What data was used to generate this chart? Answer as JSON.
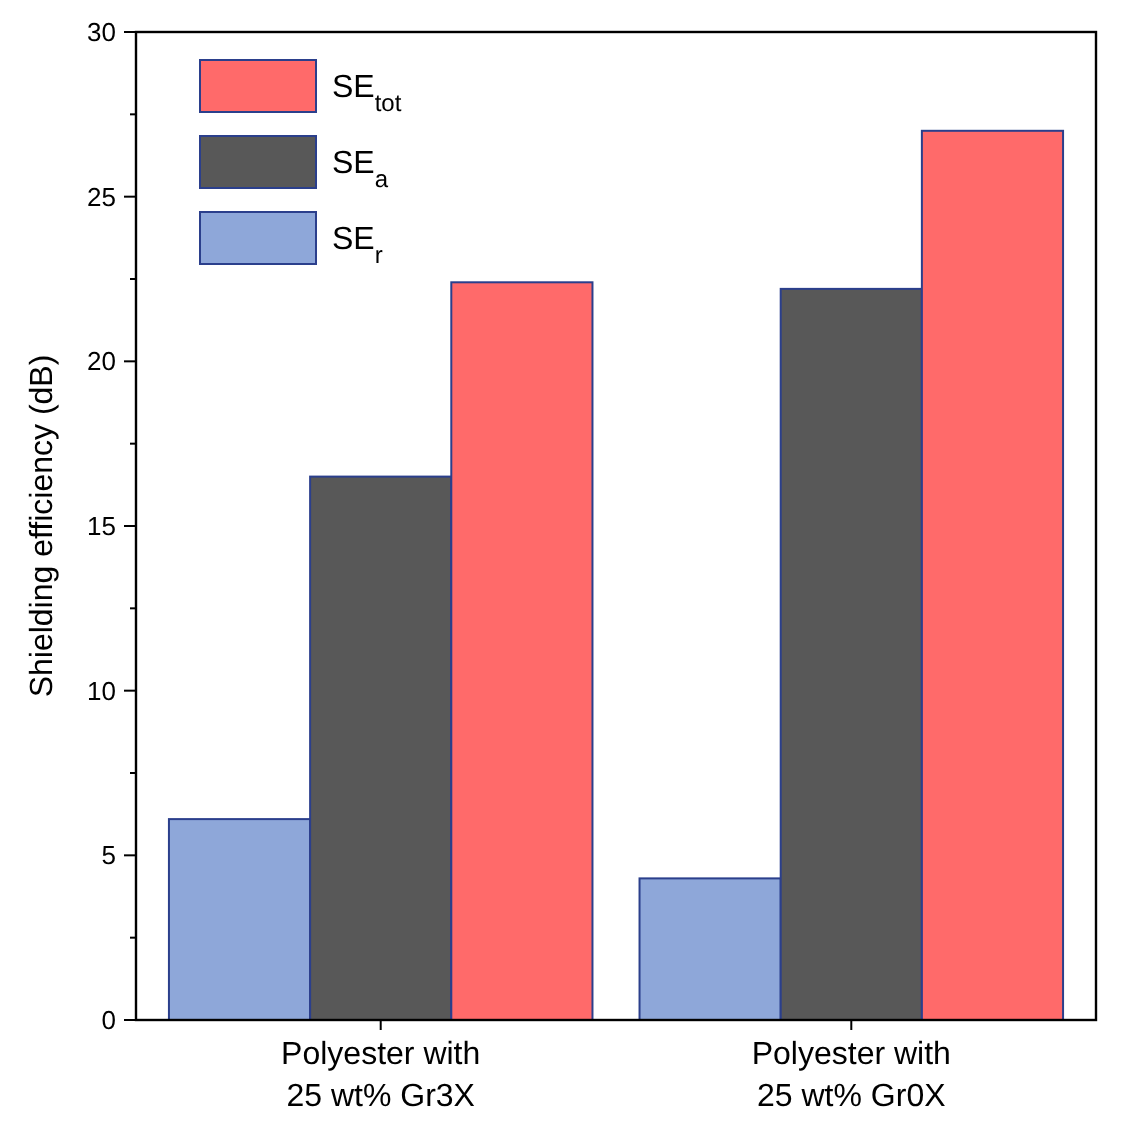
{
  "chart_data": {
    "type": "bar",
    "ylabel": "Shielding efficiency (dB)",
    "categories": [
      "Polyester with\n25 wt% Gr3X",
      "Polyester with\n25 wt% Gr0X"
    ],
    "series": [
      {
        "name": "SE$_{r}$",
        "color": "#8ea7d9",
        "values": [
          6.1,
          4.3
        ]
      },
      {
        "name": "SE$_{a}$",
        "color": "#585858",
        "values": [
          16.5,
          22.2
        ]
      },
      {
        "name": "SE$_{tot}$",
        "color": "#ff6a6a",
        "values": [
          22.4,
          27.0
        ]
      }
    ],
    "ylim": [
      0,
      30
    ],
    "yticks": [
      0,
      5,
      10,
      15,
      20,
      25,
      30
    ],
    "grid": false,
    "legend": "top left"
  }
}
